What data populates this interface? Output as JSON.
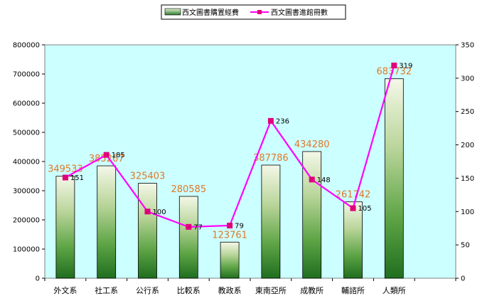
{
  "chart_data": {
    "type": "bar",
    "categories": [
      "外文系",
      "社工系",
      "公行系",
      "比較系",
      "教政系",
      "東南亞所",
      "成教所",
      "輔諮所",
      "人類所"
    ],
    "series": [
      {
        "name": "西文圖書購置經費",
        "type": "bar",
        "axis": "left",
        "values": [
          349533,
          385267,
          325403,
          280585,
          123761,
          387786,
          434280,
          261742,
          683732
        ],
        "color": "#2f8a2f",
        "label_color": "#e07828"
      },
      {
        "name": "西文圖書進館冊數",
        "type": "line",
        "axis": "right",
        "values": [
          151,
          185,
          100,
          77,
          79,
          236,
          148,
          105,
          319
        ],
        "color": "#ff00ff",
        "marker_color": "#e0007a",
        "label_color": "#000000"
      }
    ],
    "y_left": {
      "min": 0,
      "max": 800000,
      "step": 100000,
      "ticks": [
        "0",
        "100000",
        "200000",
        "300000",
        "400000",
        "500000",
        "600000",
        "700000",
        "800000"
      ]
    },
    "y_right": {
      "min": 0,
      "max": 350,
      "step": 50,
      "ticks": [
        "0",
        "50",
        "100",
        "150",
        "200",
        "250",
        "300",
        "350"
      ]
    },
    "legend_position": "top-center",
    "plot_background": "#ccffff",
    "grid": false
  }
}
